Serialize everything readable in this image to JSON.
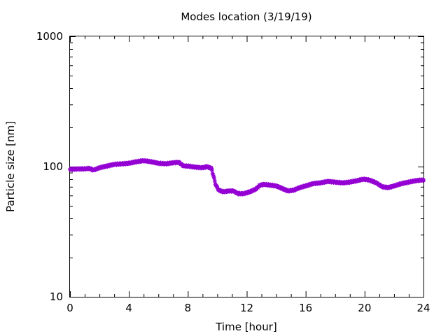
{
  "chart_data": {
    "type": "scatter",
    "title": "Modes location (3/19/19)",
    "xlabel": "Time [hour]",
    "ylabel": "Particle size [nm]",
    "xlim": [
      0,
      24
    ],
    "ylim": [
      10,
      1000
    ],
    "yscale": "log",
    "grid": false,
    "x_ticks": [
      0,
      4,
      8,
      12,
      16,
      20,
      24
    ],
    "x_tick_labels": [
      "0",
      "4",
      "8",
      "12",
      "16",
      "20",
      "24"
    ],
    "y_ticks": [
      10,
      100,
      1000
    ],
    "y_tick_labels": [
      "10",
      "100",
      "1000"
    ],
    "series": [
      {
        "color": "#9400d3",
        "marker": "star",
        "x": [
          0.0,
          0.5,
          1.0,
          1.3,
          1.6,
          1.8,
          2.0,
          2.5,
          3.0,
          3.5,
          4.0,
          4.5,
          5.0,
          5.5,
          6.0,
          6.5,
          7.0,
          7.4,
          7.7,
          8.0,
          8.5,
          9.0,
          9.3,
          9.6,
          9.75,
          9.9,
          10.1,
          10.4,
          10.8,
          11.1,
          11.4,
          11.8,
          12.2,
          12.6,
          12.9,
          13.2,
          13.6,
          14.0,
          14.4,
          14.8,
          15.2,
          15.6,
          16.0,
          16.5,
          17.0,
          17.5,
          18.0,
          18.5,
          19.0,
          19.5,
          19.9,
          20.3,
          20.8,
          21.2,
          21.6,
          22.0,
          22.5,
          23.0,
          23.5,
          24.0
        ],
        "y": [
          95,
          96,
          96,
          97,
          94,
          96,
          98,
          101,
          104,
          105,
          106,
          109,
          111,
          109,
          106,
          105,
          107,
          108,
          101,
          101,
          99,
          98,
          100,
          97,
          84,
          72,
          66,
          64,
          65,
          65,
          62,
          62,
          64,
          67,
          72,
          73,
          72,
          71,
          68,
          65,
          66,
          69,
          71,
          74,
          75,
          77,
          76,
          75,
          76,
          78,
          80,
          79,
          75,
          70,
          69,
          71,
          74,
          76,
          78,
          79
        ]
      }
    ]
  }
}
